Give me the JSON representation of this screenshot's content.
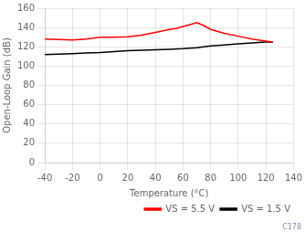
{
  "chart_data": {
    "type": "line",
    "xlabel": "Temperature (°C)",
    "ylabel": "Open-Loop Gain (dB)",
    "xlim": [
      -40,
      140
    ],
    "ylim": [
      0,
      160
    ],
    "xticks": [
      -40,
      -20,
      0,
      20,
      40,
      60,
      80,
      100,
      120,
      140
    ],
    "yticks": [
      0,
      20,
      40,
      60,
      80,
      100,
      120,
      140,
      160
    ],
    "series": [
      {
        "name": "VS = 5.5 V",
        "color": "#FF0000",
        "x": [
          -40,
          -30,
          -20,
          -10,
          0,
          10,
          20,
          30,
          40,
          50,
          55,
          60,
          65,
          70,
          75,
          80,
          90,
          100,
          110,
          120,
          125
        ],
        "values": [
          128,
          127.5,
          127,
          128,
          130,
          130,
          130.5,
          132,
          135,
          138,
          139,
          141,
          143,
          145,
          142,
          138,
          134,
          131,
          128,
          126,
          125
        ]
      },
      {
        "name": "VS = 1.5 V",
        "color": "#000000",
        "x": [
          -40,
          -30,
          -20,
          -10,
          0,
          10,
          20,
          30,
          40,
          50,
          60,
          70,
          80,
          90,
          100,
          110,
          120,
          125
        ],
        "values": [
          112,
          112.5,
          113,
          113.5,
          114,
          115,
          116,
          116.5,
          117,
          117.5,
          118,
          119,
          121,
          122,
          123,
          124,
          125,
          125
        ]
      }
    ],
    "grid": true,
    "legend": "lower right",
    "annotations": [
      "C178"
    ]
  }
}
